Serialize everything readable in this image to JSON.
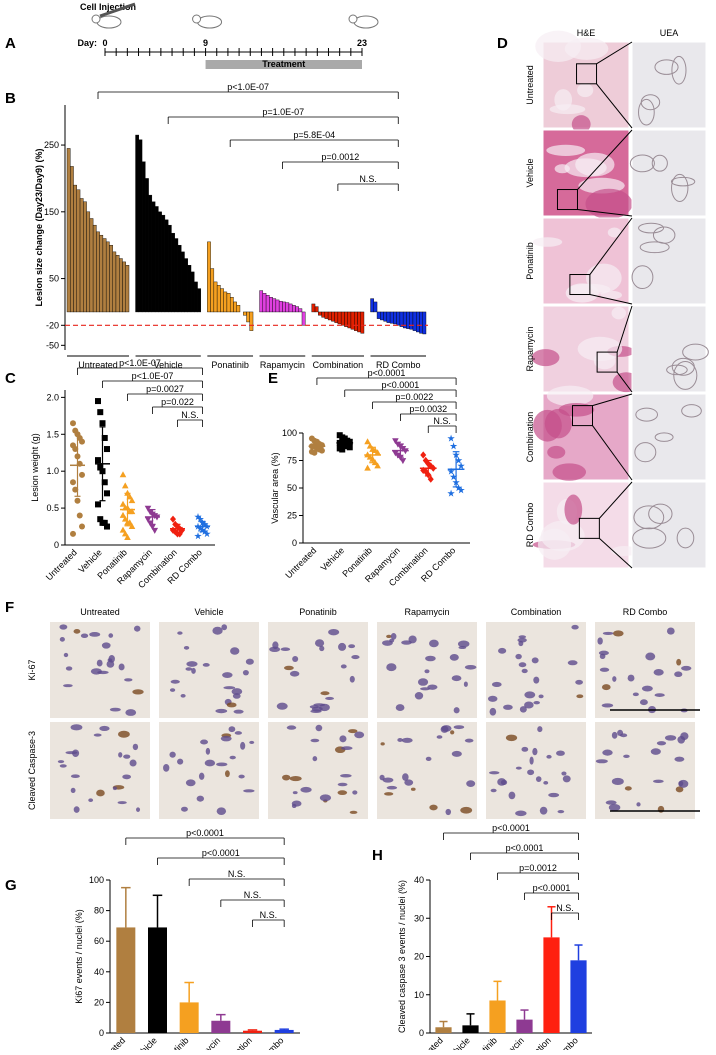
{
  "timeline": {
    "panel": "A",
    "title": "Cell Injection",
    "day_label": "Day:",
    "days": [
      0,
      9,
      23
    ],
    "treatment": "Treatment"
  },
  "histology_d": {
    "panel": "D",
    "columns": [
      "H&E",
      "UEA"
    ],
    "rows": [
      "Untreated",
      "Vehicle",
      "Ponatinib",
      "Rapamycin",
      "Combination",
      "RD Combo"
    ]
  },
  "histology_f": {
    "panel": "F",
    "columns": [
      "Untreated",
      "Vehicle",
      "Ponatinib",
      "Rapamycin",
      "Combination",
      "RD Combo"
    ],
    "rows": [
      "Ki-67",
      "Cleaved Caspase-3"
    ]
  },
  "chart_data": [
    {
      "type": "waterfall",
      "panel": "B",
      "y_label": "Lesion size change (Day23/Day9) (%)",
      "ylim": [
        -57,
        310
      ],
      "yticks": [
        -50,
        -20,
        50,
        150,
        250
      ],
      "reference_line": {
        "value": -20,
        "color": "#e8251c"
      },
      "series": [
        {
          "name": "Untreated",
          "color": "#b07f40",
          "values": [
            245,
            218,
            190,
            183,
            170,
            165,
            150,
            140,
            130,
            120,
            115,
            110,
            105,
            100,
            90,
            85,
            80,
            75,
            70
          ]
        },
        {
          "name": "Vehicle",
          "color": "#000000",
          "values": [
            265,
            258,
            225,
            200,
            175,
            165,
            158,
            150,
            145,
            138,
            130,
            118,
            110,
            100,
            90,
            80,
            70,
            60,
            45,
            35
          ]
        },
        {
          "name": "Ponatinib",
          "color": "#f5a020",
          "values": [
            105,
            65,
            45,
            40,
            35,
            30,
            28,
            22,
            15,
            10,
            0,
            -5,
            -15,
            -28
          ]
        },
        {
          "name": "Rapamycin",
          "color": "#e040e0",
          "values": [
            32,
            28,
            25,
            22,
            20,
            18,
            16,
            15,
            14,
            12,
            10,
            8,
            5,
            -20
          ]
        },
        {
          "name": "Combination",
          "color": "#e02000",
          "values": [
            12,
            8,
            -5,
            -8,
            -10,
            -12,
            -14,
            -16,
            -18,
            -20,
            -22,
            -24,
            -26,
            -28,
            -30,
            -32
          ]
        },
        {
          "name": "RD Combo",
          "color": "#1030e0",
          "values": [
            20,
            15,
            -10,
            -12,
            -14,
            -16,
            -17,
            -18,
            -20,
            -22,
            -24,
            -25,
            -26,
            -28,
            -30,
            -32,
            -33
          ]
        }
      ],
      "comparisons": [
        {
          "label": "p<1.0E-07",
          "groups": [
            "Untreated",
            "RD Combo"
          ]
        },
        {
          "label": "p=1.0E-07",
          "groups": [
            "Vehicle",
            "RD Combo"
          ]
        },
        {
          "label": "p=5.8E-04",
          "groups": [
            "Ponatinib",
            "RD Combo"
          ]
        },
        {
          "label": "p=0.0012",
          "groups": [
            "Rapamycin",
            "RD Combo"
          ]
        },
        {
          "label": "N.S.",
          "groups": [
            "Combination",
            "RD Combo"
          ]
        }
      ]
    },
    {
      "type": "dotplot",
      "panel": "C",
      "y_label": "Lesion weight (g)",
      "ylim": [
        0,
        2.1
      ],
      "yticks": [
        0,
        0.5,
        {
          "value": 1,
          "label": "1.0"
        },
        1.5,
        {
          "value": 2,
          "label": "2.0"
        }
      ],
      "series": [
        {
          "name": "Untreated",
          "color": "#b07f40",
          "marker": "circle",
          "values": [
            1.65,
            1.55,
            1.5,
            1.45,
            1.4,
            1.35,
            1.3,
            1.2,
            1.1,
            0.95,
            0.85,
            0.75,
            0.6,
            0.4,
            0.25,
            0.15
          ],
          "mean": 1.08,
          "sd": 0.42
        },
        {
          "name": "Vehicle",
          "color": "#000000",
          "marker": "square",
          "values": [
            1.95,
            1.8,
            1.65,
            1.45,
            1.3,
            1.15,
            1.05,
            1.0,
            0.85,
            0.7,
            0.55,
            0.35,
            0.3,
            0.3,
            0.25
          ],
          "mean": 1.1,
          "sd": 0.5
        },
        {
          "name": "Ponatinib",
          "color": "#f5a020",
          "marker": "triangle",
          "values": [
            0.95,
            0.8,
            0.7,
            0.65,
            0.6,
            0.55,
            0.5,
            0.5,
            0.45,
            0.45,
            0.4,
            0.35,
            0.3,
            0.3,
            0.25,
            0.2,
            0.15,
            0.1
          ],
          "mean": 0.48,
          "sd": 0.22
        },
        {
          "name": "Rapamycin",
          "color": "#8e3a92",
          "marker": "triangle-down",
          "values": [
            0.5,
            0.45,
            0.42,
            0.4,
            0.38,
            0.35,
            0.3,
            0.25,
            0.2
          ],
          "mean": 0.38,
          "sd": 0.1
        },
        {
          "name": "Combination",
          "color": "#f02010",
          "marker": "diamond",
          "values": [
            0.35,
            0.28,
            0.25,
            0.22,
            0.2,
            0.2,
            0.18,
            0.15,
            0.15
          ],
          "mean": 0.22,
          "sd": 0.06
        },
        {
          "name": "RD Combo",
          "color": "#1f6fe0",
          "marker": "star",
          "values": [
            0.38,
            0.35,
            0.3,
            0.28,
            0.25,
            0.25,
            0.22,
            0.2,
            0.18,
            0.15,
            0.12
          ],
          "mean": 0.25,
          "sd": 0.07
        }
      ],
      "comparisons": [
        {
          "label": "p<1.0E-07",
          "groups": [
            "Untreated",
            "RD Combo"
          ]
        },
        {
          "label": "p<1.0E-07",
          "groups": [
            "Vehicle",
            "RD Combo"
          ]
        },
        {
          "label": "p=0.0027",
          "groups": [
            "Ponatinib",
            "RD Combo"
          ]
        },
        {
          "label": "p=0.022",
          "groups": [
            "Rapamycin",
            "RD Combo"
          ]
        },
        {
          "label": "N.S.",
          "groups": [
            "Combination",
            "RD Combo"
          ]
        }
      ]
    },
    {
      "type": "dotplot",
      "panel": "E",
      "y_label": "Vascular area (%)",
      "ylim": [
        0,
        100
      ],
      "yticks": [
        0,
        25,
        50,
        75,
        100
      ],
      "series": [
        {
          "name": "Untreated",
          "color": "#b07f40",
          "marker": "circle",
          "values": [
            95,
            93,
            92,
            90,
            89,
            88,
            88,
            86,
            85,
            84,
            83,
            82
          ],
          "mean": 88,
          "sd": 4
        },
        {
          "name": "Vehicle",
          "color": "#000000",
          "marker": "square",
          "values": [
            98,
            96,
            95,
            93,
            92,
            91,
            90,
            89,
            88,
            87,
            86,
            85
          ],
          "mean": 91,
          "sd": 4
        },
        {
          "name": "Ponatinib",
          "color": "#f5a020",
          "marker": "triangle",
          "values": [
            92,
            88,
            85,
            84,
            82,
            80,
            78,
            76,
            73,
            70,
            68
          ],
          "mean": 80,
          "sd": 7
        },
        {
          "name": "Rapamycin",
          "color": "#8e3a92",
          "marker": "triangle-down",
          "values": [
            93,
            90,
            88,
            86,
            84,
            82,
            80,
            78,
            75
          ],
          "mean": 84,
          "sd": 6
        },
        {
          "name": "Combination",
          "color": "#f02010",
          "marker": "diamond",
          "values": [
            80,
            75,
            72,
            70,
            68,
            66,
            65,
            62,
            58
          ],
          "mean": 68,
          "sd": 7
        },
        {
          "name": "RD Combo",
          "color": "#1f6fe0",
          "marker": "star",
          "values": [
            95,
            88,
            80,
            75,
            70,
            65,
            60,
            55,
            50,
            48,
            45
          ],
          "mean": 67,
          "sd": 16
        }
      ],
      "comparisons": [
        {
          "label": "p<0.0001",
          "groups": [
            "Untreated",
            "RD Combo"
          ]
        },
        {
          "label": "p<0.0001",
          "groups": [
            "Vehicle",
            "RD Combo"
          ]
        },
        {
          "label": "p=0.0022",
          "groups": [
            "Ponatinib",
            "RD Combo"
          ]
        },
        {
          "label": "p=0.0032",
          "groups": [
            "Rapamycin",
            "RD Combo"
          ]
        },
        {
          "label": "N.S.",
          "groups": [
            "Combination",
            "RD Combo"
          ]
        }
      ]
    },
    {
      "type": "bar",
      "panel": "G",
      "y_label": "Ki67 events / nuclei (%)",
      "ylim": [
        0,
        100
      ],
      "yticks": [
        0,
        20,
        40,
        60,
        80,
        100
      ],
      "categories": [
        "Untreated",
        "Vehicle",
        "Ponatinib",
        "Rapamycin",
        "Combination",
        "RD Combo"
      ],
      "values": [
        69,
        69,
        20,
        8,
        1.5,
        2
      ],
      "errors": [
        26,
        21,
        13,
        4,
        0.5,
        0.5
      ],
      "colors": [
        "#b07f40",
        "#000000",
        "#f5a020",
        "#8e3a92",
        "#f02010",
        "#1f3fe0"
      ],
      "comparisons": [
        {
          "label": "p<0.0001",
          "groups": [
            "Untreated",
            "RD Combo"
          ]
        },
        {
          "label": "p<0.0001",
          "groups": [
            "Vehicle",
            "RD Combo"
          ]
        },
        {
          "label": "N.S.",
          "groups": [
            "Ponatinib",
            "RD Combo"
          ]
        },
        {
          "label": "N.S.",
          "groups": [
            "Rapamycin",
            "RD Combo"
          ]
        },
        {
          "label": "N.S.",
          "groups": [
            "Combination",
            "RD Combo"
          ]
        }
      ]
    },
    {
      "type": "bar",
      "panel": "H",
      "y_label": "Cleaved caspase 3 events / nuclei (%)",
      "ylim": [
        0,
        40
      ],
      "yticks": [
        0,
        10,
        20,
        30,
        40
      ],
      "categories": [
        "Untreated",
        "Vehicle",
        "Ponatinib",
        "Rapamycin",
        "Combination",
        "RD Combo"
      ],
      "values": [
        1.5,
        2,
        8.5,
        3.5,
        25,
        19
      ],
      "errors": [
        1.5,
        3,
        5,
        2.5,
        8,
        4
      ],
      "colors": [
        "#b07f40",
        "#000000",
        "#f5a020",
        "#8e3a92",
        "#ff2010",
        "#1f3fe0"
      ],
      "comparisons": [
        {
          "label": "p<0.0001",
          "groups": [
            "Untreated",
            "RD Combo"
          ]
        },
        {
          "label": "p<0.0001",
          "groups": [
            "Vehicle",
            "RD Combo"
          ]
        },
        {
          "label": "p=0.0012",
          "groups": [
            "Ponatinib",
            "RD Combo"
          ]
        },
        {
          "label": "p<0.0001",
          "groups": [
            "Rapamycin",
            "RD Combo"
          ]
        },
        {
          "label": "N.S.",
          "groups": [
            "Combination",
            "RD Combo"
          ]
        }
      ]
    }
  ]
}
